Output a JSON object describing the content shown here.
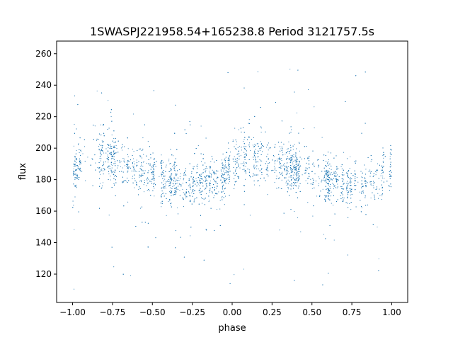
{
  "figure": {
    "title": "1SWASPJ221958.54+165238.8 Period 3121757.5s"
  },
  "chart_data": {
    "type": "scatter",
    "title": "1SWASPJ221958.54+165238.8 Period 3121757.5s",
    "xlabel": "phase",
    "ylabel": "flux",
    "xlim": [
      -1.1,
      1.1
    ],
    "ylim": [
      102,
      268
    ],
    "grid": false,
    "legend": "none",
    "x_ticks": [
      -1.0,
      -0.75,
      -0.5,
      -0.25,
      0.0,
      0.25,
      0.5,
      0.75,
      1.0
    ],
    "x_tick_labels": [
      "−1.00",
      "−0.75",
      "−0.50",
      "−0.25",
      "0.00",
      "0.25",
      "0.50",
      "0.75",
      "1.00"
    ],
    "y_ticks": [
      120,
      140,
      160,
      180,
      200,
      220,
      240,
      260
    ],
    "y_tick_labels": [
      "120",
      "140",
      "160",
      "180",
      "200",
      "220",
      "240",
      "260"
    ],
    "marker_color": "#1f77b4",
    "series": [
      {
        "phase_flux_profile": {
          "description_of_values": "approximate median flux and scatter band vs phase (phase folded twice, -1 to 1)",
          "phase": [
            -1.0,
            -0.9,
            -0.8,
            -0.7,
            -0.6,
            -0.5,
            -0.4,
            -0.3,
            -0.2,
            -0.1,
            0.0,
            0.1,
            0.2,
            0.3,
            0.4,
            0.5,
            0.6,
            0.7,
            0.8,
            0.9,
            1.0
          ],
          "median_flux": [
            188,
            193,
            194,
            190,
            187,
            184,
            178,
            177,
            177,
            180,
            188,
            193,
            194,
            190,
            187,
            184,
            178,
            177,
            177,
            180,
            188
          ],
          "spread": [
            12,
            14,
            14,
            12,
            12,
            13,
            12,
            11,
            11,
            12,
            12,
            14,
            14,
            12,
            12,
            13,
            12,
            11,
            11,
            12,
            12
          ]
        },
        "outlier_flux_range": [
          110,
          258
        ]
      }
    ]
  }
}
